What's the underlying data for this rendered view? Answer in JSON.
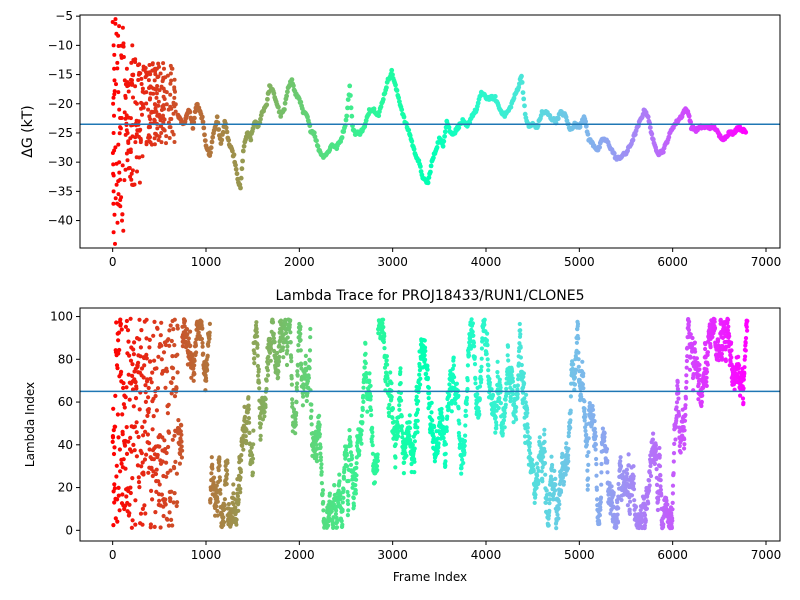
{
  "figure": {
    "background": "#ffffff",
    "colormap": "rainbow"
  },
  "chart_data": [
    {
      "type": "scatter",
      "title": "",
      "xlabel": "",
      "ylabel": "ΔG (kT)",
      "xlim": [
        -350,
        7150
      ],
      "ylim": [
        -44.7,
        -4.8
      ],
      "xticks": [
        0,
        1000,
        2000,
        3000,
        4000,
        5000,
        6000,
        7000
      ],
      "yticks": [
        -40,
        -35,
        -30,
        -25,
        -20,
        -15,
        -10,
        -5
      ],
      "hline": {
        "y": -23.5,
        "color": "#1f77b4"
      },
      "color_by": "frame-index (rainbow, red at frame 0 to purple at last frame)",
      "trajectory_points": [
        [
          700,
          -22
        ],
        [
          760,
          -23.5
        ],
        [
          820,
          -21
        ],
        [
          860,
          -24
        ],
        [
          900,
          -20
        ],
        [
          960,
          -22.5
        ],
        [
          1000,
          -27
        ],
        [
          1040,
          -29
        ],
        [
          1080,
          -25
        ],
        [
          1120,
          -22.5
        ],
        [
          1160,
          -27
        ],
        [
          1200,
          -23
        ],
        [
          1250,
          -27
        ],
        [
          1300,
          -29
        ],
        [
          1340,
          -33
        ],
        [
          1370,
          -34.5
        ],
        [
          1400,
          -28
        ],
        [
          1440,
          -25
        ],
        [
          1480,
          -26
        ],
        [
          1520,
          -23
        ],
        [
          1560,
          -24
        ],
        [
          1600,
          -21.5
        ],
        [
          1650,
          -20
        ],
        [
          1680,
          -17
        ],
        [
          1720,
          -18
        ],
        [
          1760,
          -20
        ],
        [
          1800,
          -22
        ],
        [
          1840,
          -21
        ],
        [
          1880,
          -17
        ],
        [
          1920,
          -16
        ],
        [
          1960,
          -18.5
        ],
        [
          2000,
          -19
        ],
        [
          2040,
          -21.5
        ],
        [
          2080,
          -22
        ],
        [
          2120,
          -24.5
        ],
        [
          2160,
          -25
        ],
        [
          2200,
          -27.5
        ],
        [
          2250,
          -29
        ],
        [
          2300,
          -28.5
        ],
        [
          2350,
          -27
        ],
        [
          2400,
          -27.5
        ],
        [
          2450,
          -26
        ],
        [
          2500,
          -23
        ],
        [
          2540,
          -17
        ],
        [
          2570,
          -24
        ],
        [
          2600,
          -25
        ],
        [
          2650,
          -25
        ],
        [
          2700,
          -24
        ],
        [
          2750,
          -21
        ],
        [
          2800,
          -21
        ],
        [
          2850,
          -22
        ],
        [
          2900,
          -19
        ],
        [
          2950,
          -16
        ],
        [
          2990,
          -14.5
        ],
        [
          3030,
          -17
        ],
        [
          3080,
          -20
        ],
        [
          3130,
          -23
        ],
        [
          3180,
          -25
        ],
        [
          3230,
          -28
        ],
        [
          3280,
          -30
        ],
        [
          3330,
          -33
        ],
        [
          3380,
          -33.5
        ],
        [
          3420,
          -30
        ],
        [
          3460,
          -28
        ],
        [
          3500,
          -26
        ],
        [
          3540,
          -27
        ],
        [
          3580,
          -23
        ],
        [
          3620,
          -25
        ],
        [
          3660,
          -25
        ],
        [
          3700,
          -24
        ],
        [
          3750,
          -23
        ],
        [
          3800,
          -24
        ],
        [
          3850,
          -22
        ],
        [
          3900,
          -21
        ],
        [
          3950,
          -18
        ],
        [
          4000,
          -19
        ],
        [
          4050,
          -19
        ],
        [
          4100,
          -19
        ],
        [
          4150,
          -21
        ],
        [
          4200,
          -22
        ],
        [
          4250,
          -21
        ],
        [
          4300,
          -19
        ],
        [
          4350,
          -17
        ],
        [
          4380,
          -15
        ],
        [
          4420,
          -22
        ],
        [
          4460,
          -24
        ],
        [
          4500,
          -23.5
        ],
        [
          4550,
          -24
        ],
        [
          4600,
          -21.5
        ],
        [
          4650,
          -21.5
        ],
        [
          4700,
          -22.5
        ],
        [
          4750,
          -23
        ],
        [
          4800,
          -21.5
        ],
        [
          4850,
          -22
        ],
        [
          4900,
          -24.5
        ],
        [
          4950,
          -23.5
        ],
        [
          5000,
          -24
        ],
        [
          5050,
          -22
        ],
        [
          5100,
          -26
        ],
        [
          5150,
          -27
        ],
        [
          5200,
          -28
        ],
        [
          5250,
          -26
        ],
        [
          5300,
          -26.5
        ],
        [
          5350,
          -28
        ],
        [
          5400,
          -29.5
        ],
        [
          5450,
          -29
        ],
        [
          5500,
          -28.5
        ],
        [
          5550,
          -27
        ],
        [
          5600,
          -25
        ],
        [
          5650,
          -23
        ],
        [
          5700,
          -21
        ],
        [
          5730,
          -22
        ],
        [
          5760,
          -24
        ],
        [
          5800,
          -27
        ],
        [
          5850,
          -28.5
        ],
        [
          5900,
          -28
        ],
        [
          5950,
          -26
        ],
        [
          6000,
          -24
        ],
        [
          6050,
          -23
        ],
        [
          6100,
          -22
        ],
        [
          6130,
          -21
        ],
        [
          6170,
          -21.5
        ],
        [
          6200,
          -24
        ],
        [
          6250,
          -24.5
        ],
        [
          6300,
          -24
        ],
        [
          6350,
          -24
        ],
        [
          6400,
          -24
        ],
        [
          6450,
          -24
        ],
        [
          6500,
          -25.5
        ],
        [
          6550,
          -26
        ],
        [
          6600,
          -25
        ],
        [
          6650,
          -25
        ],
        [
          6700,
          -24
        ],
        [
          6750,
          -24.5
        ],
        [
          6790,
          -25
        ]
      ],
      "early_scatter": [
        [
          0,
          -6
        ],
        [
          10,
          -10
        ],
        [
          15,
          -14
        ],
        [
          20,
          -16
        ],
        [
          5,
          -20
        ],
        [
          10,
          -25
        ],
        [
          15,
          -28
        ],
        [
          5,
          -32
        ],
        [
          10,
          -35
        ],
        [
          20,
          -39
        ],
        [
          10,
          -42
        ],
        [
          25,
          -44
        ],
        [
          30,
          -5.5
        ],
        [
          40,
          -8
        ],
        [
          50,
          -13
        ],
        [
          60,
          -18
        ],
        [
          70,
          -21
        ],
        [
          80,
          -24
        ],
        [
          60,
          -27
        ],
        [
          70,
          -30
        ],
        [
          80,
          -33
        ],
        [
          90,
          -36
        ],
        [
          100,
          -40
        ],
        [
          110,
          -7
        ],
        [
          120,
          -12
        ],
        [
          130,
          -16
        ],
        [
          140,
          -19
        ],
        [
          150,
          -22
        ],
        [
          160,
          -25
        ],
        [
          170,
          -28
        ],
        [
          180,
          -31
        ],
        [
          200,
          -33
        ],
        [
          210,
          -10
        ],
        [
          220,
          -15
        ],
        [
          240,
          -17
        ],
        [
          260,
          -20
        ],
        [
          280,
          -23
        ],
        [
          300,
          -26
        ],
        [
          320,
          -29
        ],
        [
          340,
          -14
        ],
        [
          360,
          -18
        ],
        [
          380,
          -21
        ],
        [
          400,
          -24
        ],
        [
          420,
          -27
        ],
        [
          450,
          -16
        ],
        [
          470,
          -19
        ],
        [
          500,
          -22
        ],
        [
          520,
          -25
        ],
        [
          550,
          -14
        ],
        [
          580,
          -18
        ],
        [
          600,
          -21
        ],
        [
          620,
          -24
        ],
        [
          640,
          -14
        ],
        [
          660,
          -19
        ]
      ]
    },
    {
      "type": "scatter",
      "title": "Lambda Trace for PROJ18433/RUN1/CLONE5",
      "xlabel": "Frame Index",
      "ylabel": "Lambda Index",
      "xlim": [
        -350,
        7150
      ],
      "ylim": [
        -5,
        104
      ],
      "xticks": [
        0,
        1000,
        2000,
        3000,
        4000,
        5000,
        6000,
        7000
      ],
      "yticks": [
        0,
        20,
        40,
        60,
        80,
        100
      ],
      "hline": {
        "y": 65,
        "color": "#1f77b4"
      },
      "color_by": "frame-index (rainbow, red at frame 0 to purple at last frame)",
      "n_frames": 6800,
      "value_range": [
        1,
        99
      ]
    }
  ]
}
